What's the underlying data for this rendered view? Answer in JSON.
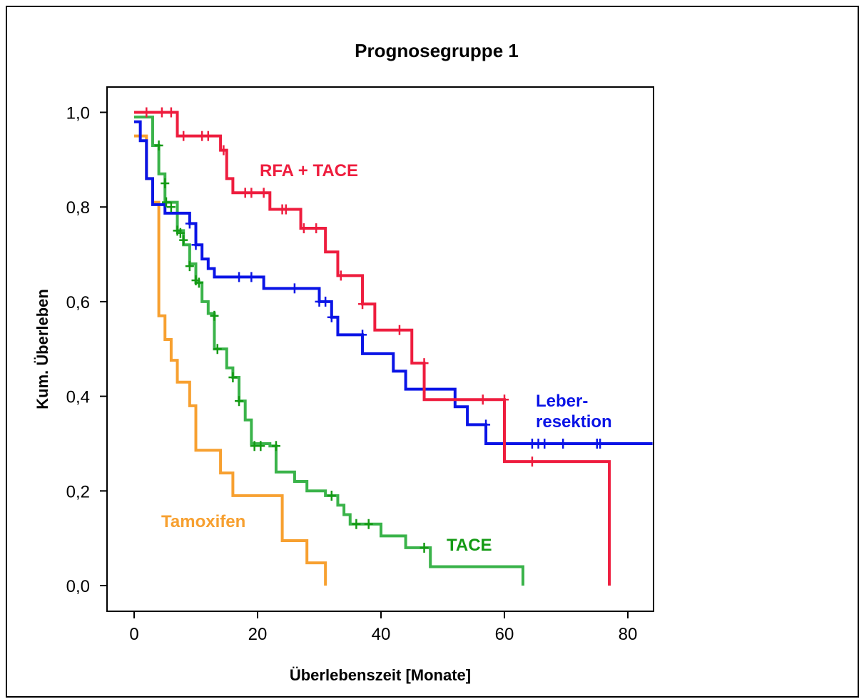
{
  "chart_data": {
    "type": "line",
    "subtype": "kaplan-meier survival step curves",
    "title": "Prognosegruppe 1",
    "xlabel": "Überlebenszeit [Monate]",
    "ylabel": "Kum. Überleben",
    "xlim": [
      -6,
      84
    ],
    "ylim": [
      -0.05,
      1.05
    ],
    "xticks": [
      0,
      20,
      40,
      60,
      80
    ],
    "xtick_labels": [
      "0",
      "20",
      "40",
      "60",
      "80"
    ],
    "yticks": [
      0.0,
      0.2,
      0.4,
      0.6,
      0.8,
      1.0
    ],
    "ytick_labels": [
      "0,0",
      "0,2",
      "0,4",
      "0,6",
      "0,8",
      "1,0"
    ],
    "grid": false,
    "legend": "none (inline curve labels)",
    "series": [
      {
        "name": "RFA + TACE",
        "color": "#EE1D3E",
        "steps": [
          [
            0,
            1.0
          ],
          [
            7,
            0.95
          ],
          [
            14,
            0.92
          ],
          [
            15,
            0.86
          ],
          [
            16,
            0.83
          ],
          [
            22,
            0.795
          ],
          [
            27,
            0.755
          ],
          [
            31,
            0.705
          ],
          [
            33,
            0.655
          ],
          [
            37,
            0.595
          ],
          [
            39,
            0.54
          ],
          [
            45,
            0.47
          ],
          [
            47,
            0.393
          ],
          [
            60,
            0.262
          ],
          [
            77,
            0.262
          ]
        ],
        "end": [
          77,
          0.0
        ],
        "censored": [
          [
            2,
            1.0
          ],
          [
            4.5,
            1.0
          ],
          [
            6,
            1.0
          ],
          [
            8,
            0.95
          ],
          [
            11,
            0.95
          ],
          [
            12,
            0.95
          ],
          [
            14.5,
            0.92
          ],
          [
            18,
            0.83
          ],
          [
            19,
            0.83
          ],
          [
            21,
            0.83
          ],
          [
            24,
            0.795
          ],
          [
            24.6,
            0.795
          ],
          [
            27.5,
            0.755
          ],
          [
            29.5,
            0.755
          ],
          [
            33.5,
            0.655
          ],
          [
            37,
            0.595
          ],
          [
            43,
            0.54
          ],
          [
            47,
            0.47
          ],
          [
            56.5,
            0.393
          ],
          [
            60,
            0.393
          ],
          [
            64.5,
            0.262
          ]
        ]
      },
      {
        "name": "Leber-\nresektion",
        "color": "#0A14E6",
        "steps": [
          [
            0,
            0.98
          ],
          [
            1,
            0.94
          ],
          [
            2,
            0.86
          ],
          [
            3,
            0.805
          ],
          [
            5,
            0.787
          ],
          [
            9,
            0.765
          ],
          [
            10,
            0.72
          ],
          [
            11,
            0.69
          ],
          [
            12,
            0.67
          ],
          [
            13,
            0.652
          ],
          [
            21,
            0.628
          ],
          [
            30,
            0.6
          ],
          [
            32,
            0.567
          ],
          [
            33,
            0.53
          ],
          [
            37,
            0.49
          ],
          [
            42,
            0.453
          ],
          [
            44,
            0.415
          ],
          [
            52,
            0.378
          ],
          [
            54,
            0.34
          ],
          [
            57,
            0.3
          ],
          [
            84,
            0.3
          ]
        ],
        "end": null,
        "censored": [
          [
            9,
            0.765
          ],
          [
            10,
            0.72
          ],
          [
            17,
            0.652
          ],
          [
            19,
            0.652
          ],
          [
            26,
            0.628
          ],
          [
            30,
            0.6
          ],
          [
            31,
            0.6
          ],
          [
            32,
            0.567
          ],
          [
            37,
            0.53
          ],
          [
            57,
            0.34
          ],
          [
            64.5,
            0.3
          ],
          [
            65.5,
            0.3
          ],
          [
            66.5,
            0.3
          ],
          [
            69.5,
            0.3
          ],
          [
            75,
            0.3
          ],
          [
            75.5,
            0.3
          ]
        ]
      },
      {
        "name": "TACE",
        "color": "#3AB34A",
        "color_label": "#149A14",
        "steps": [
          [
            0,
            0.99
          ],
          [
            3,
            0.93
          ],
          [
            4,
            0.87
          ],
          [
            5,
            0.81
          ],
          [
            7,
            0.75
          ],
          [
            8,
            0.72
          ],
          [
            9,
            0.68
          ],
          [
            10,
            0.64
          ],
          [
            11,
            0.6
          ],
          [
            12,
            0.575
          ],
          [
            13,
            0.5
          ],
          [
            15,
            0.46
          ],
          [
            16,
            0.44
          ],
          [
            17,
            0.39
          ],
          [
            18,
            0.35
          ],
          [
            19,
            0.3
          ],
          [
            22,
            0.295
          ],
          [
            23,
            0.24
          ],
          [
            26,
            0.22
          ],
          [
            28,
            0.2
          ],
          [
            31,
            0.19
          ],
          [
            33,
            0.17
          ],
          [
            34,
            0.15
          ],
          [
            35,
            0.13
          ],
          [
            40,
            0.105
          ],
          [
            44,
            0.08
          ],
          [
            48,
            0.04
          ],
          [
            63,
            0.04
          ]
        ],
        "end": [
          63,
          0.0
        ],
        "censored": [
          [
            4,
            0.93
          ],
          [
            5,
            0.85
          ],
          [
            5.2,
            0.81
          ],
          [
            6,
            0.8
          ],
          [
            7,
            0.75
          ],
          [
            7.5,
            0.745
          ],
          [
            8,
            0.73
          ],
          [
            9,
            0.675
          ],
          [
            10,
            0.645
          ],
          [
            10.5,
            0.64
          ],
          [
            13,
            0.57
          ],
          [
            13.5,
            0.5
          ],
          [
            16,
            0.44
          ],
          [
            17,
            0.39
          ],
          [
            19.5,
            0.295
          ],
          [
            20.5,
            0.295
          ],
          [
            23,
            0.295
          ],
          [
            32,
            0.19
          ],
          [
            36,
            0.13
          ],
          [
            38,
            0.13
          ],
          [
            47,
            0.08
          ]
        ]
      },
      {
        "name": "Tamoxifen",
        "color": "#F7A030",
        "steps": [
          [
            0,
            0.95
          ],
          [
            2,
            0.86
          ],
          [
            3,
            0.81
          ],
          [
            4,
            0.57
          ],
          [
            5,
            0.52
          ],
          [
            6,
            0.476
          ],
          [
            7,
            0.43
          ],
          [
            9,
            0.38
          ],
          [
            10,
            0.286
          ],
          [
            14,
            0.238
          ],
          [
            16,
            0.19
          ],
          [
            24,
            0.095
          ],
          [
            28,
            0.048
          ],
          [
            31,
            0.048
          ]
        ],
        "end": [
          31,
          0.0
        ],
        "censored": []
      }
    ],
    "annotations": [
      "RFA + TACE",
      "Leber-",
      "resektion",
      "TACE",
      "Tamoxifen"
    ]
  }
}
